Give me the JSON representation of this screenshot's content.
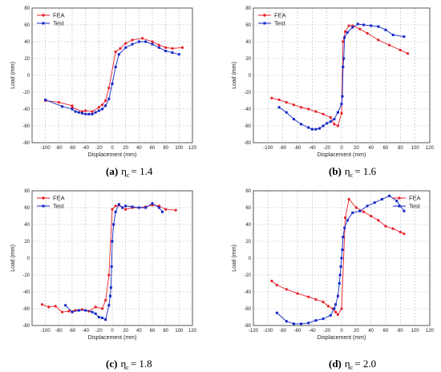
{
  "colors": {
    "fea": "#e8202a",
    "test": "#1327c8",
    "grid": "#b8b8b8"
  },
  "chart_data": [
    {
      "type": "line",
      "caption": {
        "letter": "(a)",
        "eta": "η",
        "sub": "c",
        "value": "= 1.4"
      },
      "xlabel": "Displacement (mm)",
      "ylabel": "Load (mm)",
      "xlim": [
        -120,
        120
      ],
      "ylim": [
        -80,
        80
      ],
      "xticks": [
        -100,
        -80,
        -60,
        -40,
        -20,
        0,
        20,
        40,
        60,
        80,
        100,
        120
      ],
      "yticks": [
        -80,
        -60,
        -40,
        -20,
        0,
        20,
        40,
        60,
        80
      ],
      "grid": true,
      "legend": "top-left",
      "series": [
        {
          "name": "FEA",
          "marker": "circle",
          "x": [
            -100,
            -80,
            -60,
            -60,
            -45,
            -40,
            -30,
            -20,
            -15,
            -10,
            -5,
            5,
            12,
            20,
            30,
            45,
            60,
            70,
            80,
            90,
            105
          ],
          "y": [
            -30,
            -32,
            -36,
            -38,
            -43,
            -42,
            -43,
            -38,
            -35,
            -30,
            -15,
            28,
            32,
            38,
            42,
            44,
            40,
            36,
            33,
            32,
            33
          ]
        },
        {
          "name": "Test",
          "marker": "square",
          "x": [
            -100,
            -75,
            -60,
            -55,
            -50,
            -45,
            -40,
            -35,
            -30,
            -25,
            -20,
            -15,
            -10,
            -5,
            0,
            5,
            10,
            20,
            30,
            40,
            50,
            60,
            70,
            80,
            90,
            100
          ],
          "y": [
            -29,
            -37,
            -40,
            -43,
            -44,
            -45,
            -46,
            -46,
            -46,
            -44,
            -42,
            -40,
            -36,
            -28,
            -10,
            10,
            25,
            33,
            37,
            40,
            40,
            37,
            33,
            29,
            27,
            25
          ]
        }
      ]
    },
    {
      "type": "line",
      "caption": {
        "letter": "(b)",
        "eta": "η",
        "sub": "c",
        "value": "= 1.6"
      },
      "xlabel": "Displacement (mm)",
      "ylabel": "Load (mm)",
      "xlim": [
        -120,
        120
      ],
      "ylim": [
        -80,
        80
      ],
      "xticks": [
        -100,
        -80,
        -60,
        -40,
        -20,
        0,
        20,
        40,
        60,
        80,
        100,
        120
      ],
      "yticks": [
        -80,
        -60,
        -40,
        -20,
        0,
        20,
        40,
        60,
        80
      ],
      "grid": true,
      "legend": "top-left",
      "series": [
        {
          "name": "FEA",
          "marker": "circle",
          "x": [
            -95,
            -85,
            -75,
            -65,
            -55,
            -45,
            -35,
            -25,
            -15,
            -10,
            -5,
            0,
            2,
            5,
            10,
            15,
            25,
            35,
            50,
            65,
            80,
            90
          ],
          "y": [
            -27,
            -29,
            -32,
            -35,
            -38,
            -40,
            -43,
            -46,
            -50,
            -58,
            -60,
            -45,
            40,
            52,
            59,
            59,
            55,
            50,
            42,
            36,
            30,
            26
          ]
        },
        {
          "name": "Test",
          "marker": "square",
          "x": [
            -85,
            -75,
            -65,
            -55,
            -45,
            -40,
            -35,
            -30,
            -25,
            -20,
            -15,
            -10,
            -5,
            0,
            1,
            2,
            3,
            4,
            8,
            15,
            22,
            30,
            40,
            50,
            60,
            70,
            85
          ],
          "y": [
            -38,
            -44,
            -52,
            -58,
            -62,
            -64,
            -64,
            -63,
            -60,
            -57,
            -55,
            -52,
            -44,
            -34,
            -25,
            10,
            20,
            45,
            51,
            57,
            61,
            60,
            59,
            58,
            54,
            48,
            46
          ]
        }
      ]
    },
    {
      "type": "line",
      "caption": {
        "letter": "(c)",
        "eta": "η",
        "sub": "c",
        "value": "= 1.8"
      },
      "xlabel": "Displacement (mm)",
      "ylabel": "Load (mm)",
      "xlim": [
        -120,
        120
      ],
      "ylim": [
        -80,
        80
      ],
      "xticks": [
        -100,
        -80,
        -60,
        -40,
        -20,
        0,
        20,
        40,
        60,
        80,
        100,
        120
      ],
      "yticks": [
        -80,
        -60,
        -40,
        -20,
        0,
        20,
        40,
        60,
        80
      ],
      "grid": true,
      "legend": "top-left",
      "series": [
        {
          "name": "FEA",
          "marker": "circle",
          "x": [
            -105,
            -95,
            -85,
            -75,
            -65,
            -55,
            -45,
            -35,
            -25,
            -15,
            -10,
            -5,
            0,
            5,
            10,
            15,
            20,
            30,
            40,
            50,
            60,
            70,
            80,
            95
          ],
          "y": [
            -55,
            -58,
            -57,
            -64,
            -63,
            -62,
            -61,
            -63,
            -58,
            -60,
            -50,
            -20,
            58,
            62,
            63,
            60,
            58,
            60,
            60,
            61,
            63,
            62,
            58,
            57
          ]
        },
        {
          "name": "Test",
          "marker": "square",
          "x": [
            -70,
            -60,
            -50,
            -40,
            -30,
            -25,
            -20,
            -15,
            -10,
            -5,
            -3,
            -2,
            -1,
            0,
            2,
            5,
            10,
            15,
            20,
            30,
            40,
            50,
            60,
            70,
            75
          ],
          "y": [
            -56,
            -64,
            -62,
            -62,
            -64,
            -66,
            -70,
            -71,
            -73,
            -56,
            -45,
            -35,
            -10,
            20,
            40,
            55,
            64,
            60,
            62,
            61,
            60,
            60,
            65,
            60,
            55
          ]
        }
      ]
    },
    {
      "type": "line",
      "caption": {
        "letter": "(d)",
        "eta": "η",
        "sub": "c",
        "value": "= 2.0"
      },
      "xlabel": "Displacement (mm)",
      "ylabel": "Load (mm)",
      "xlim": [
        -120,
        120
      ],
      "ylim": [
        -80,
        80
      ],
      "xticks": [
        -120,
        -100,
        -80,
        -60,
        -40,
        -20,
        0,
        20,
        40,
        60,
        80,
        100,
        120
      ],
      "yticks": [
        -80,
        -60,
        -40,
        -20,
        0,
        20,
        40,
        60,
        80
      ],
      "grid": true,
      "legend": "top-right",
      "series": [
        {
          "name": "FEA",
          "marker": "circle",
          "x": [
            -95,
            -88,
            -75,
            -60,
            -45,
            -35,
            -25,
            -18,
            -12,
            -8,
            -5,
            0,
            5,
            10,
            20,
            30,
            40,
            50,
            60,
            70,
            80,
            85
          ],
          "y": [
            -27,
            -32,
            -37,
            -42,
            -46,
            -49,
            -52,
            -57,
            -60,
            -64,
            -67,
            -60,
            48,
            70,
            60,
            55,
            50,
            45,
            38,
            35,
            31,
            29
          ]
        },
        {
          "name": "Test",
          "marker": "square",
          "x": [
            -88,
            -75,
            -65,
            -55,
            -45,
            -35,
            -25,
            -15,
            -10,
            -8,
            -5,
            -3,
            -2,
            -1,
            0,
            1,
            2,
            4,
            8,
            15,
            25,
            35,
            45,
            55,
            65,
            75,
            85
          ],
          "y": [
            -65,
            -75,
            -78,
            -78,
            -77,
            -74,
            -72,
            -68,
            -60,
            -55,
            -45,
            -30,
            -20,
            -10,
            0,
            10,
            25,
            36,
            45,
            54,
            56,
            62,
            66,
            70,
            74,
            68,
            56
          ]
        }
      ]
    }
  ]
}
